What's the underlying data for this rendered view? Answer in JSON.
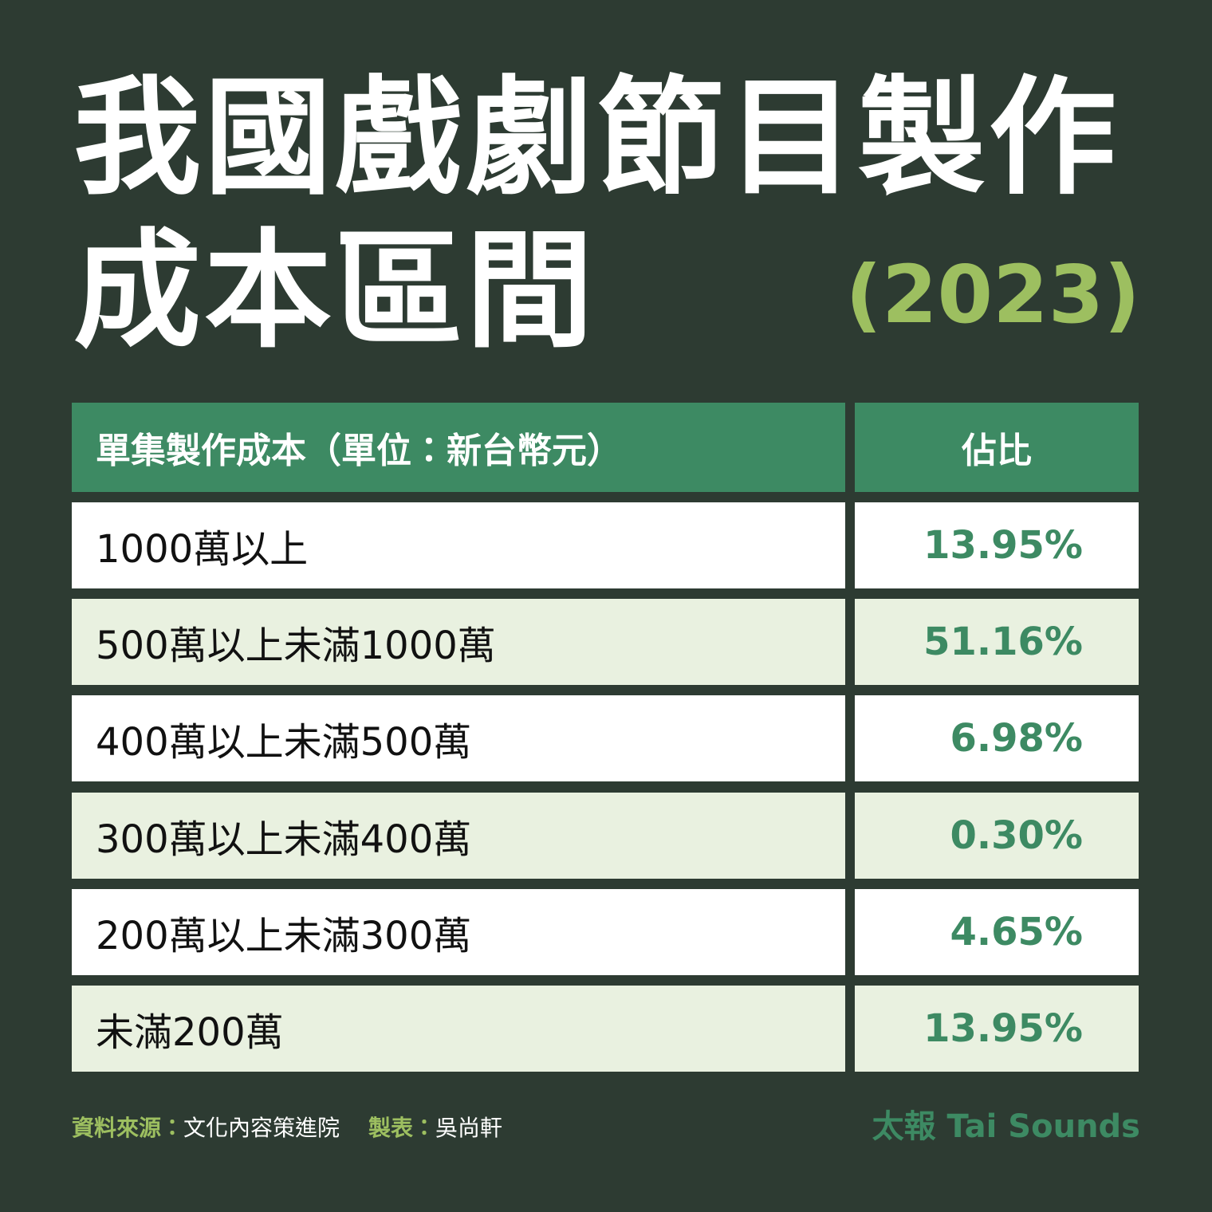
{
  "header": {
    "title_line1": "我國戲劇節目製作",
    "title_line2": "成本區間",
    "year": "(2023)"
  },
  "table": {
    "columns": [
      "單集製作成本（單位：新台幣元）",
      "佔比"
    ],
    "rows": [
      [
        "1000萬以上",
        "13.95%"
      ],
      [
        "500萬以上未滿1000萬",
        "51.16%"
      ],
      [
        "400萬以上未滿500萬",
        "6.98%"
      ],
      [
        "300萬以上未滿400萬",
        "0.30%"
      ],
      [
        "200萬以上未滿300萬",
        "4.65%"
      ],
      [
        "未滿200萬",
        "13.95%"
      ]
    ]
  },
  "footer": {
    "source_label": "資料來源：",
    "source": "文化內容策進院",
    "author_label": "製表：",
    "author": "吳尚軒",
    "brand": "太報 Tai Sounds"
  }
}
